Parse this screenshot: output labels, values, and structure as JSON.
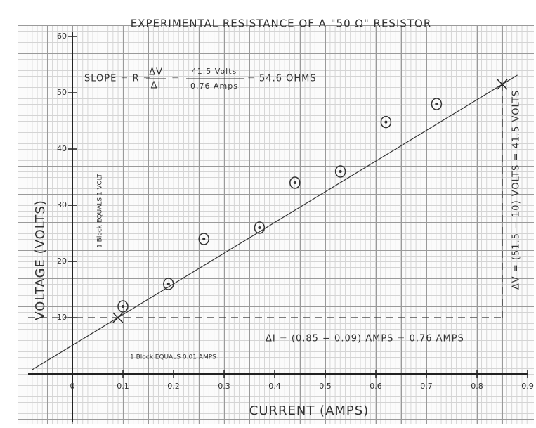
{
  "chart_data": {
    "type": "scatter",
    "title": "EXPERIMENTAL RESISTANCE OF A \"50 Ω\" RESISTOR",
    "x_label": "CURRENT (AMPS)",
    "y_label": "VOLTAGE (VOLTS)",
    "x": [
      0.1,
      0.19,
      0.26,
      0.37,
      0.44,
      0.53,
      0.62,
      0.72
    ],
    "values": [
      12,
      16,
      24,
      26,
      34,
      36,
      44.8,
      48
    ],
    "color": "#333333",
    "fit": {
      "x": [
        0.09,
        0.85
      ],
      "y": [
        10,
        51.5
      ]
    },
    "xlim": [
      -0.1,
      0.9
    ],
    "ylim": [
      -8,
      62
    ],
    "xticks": [
      0,
      0.1,
      0.2,
      0.3,
      0.4,
      0.5,
      0.6,
      0.7,
      0.8,
      0.9
    ],
    "yticks": [
      10,
      20,
      30,
      40,
      50,
      60
    ],
    "annotations": {
      "slope_lhs": "SLOPE = R =",
      "slope_num": "ΔV",
      "slope_den": "ΔI",
      "slope_eq": "=",
      "slope_num2": "41.5 Volts",
      "slope_den2": "0.76 Amps",
      "slope_result": "= 54.6 OHMS",
      "delta_v": "ΔV = (51.5 − 10) VOLTS = 41.5 VOLTS",
      "delta_i": "ΔI = (0.85 − 0.09) AMPS = 0.76 AMPS",
      "x_block": "1 Block EQUALS 0.01 AMPS",
      "y_block": "1 Block EQUALS 1 VOLT"
    }
  }
}
